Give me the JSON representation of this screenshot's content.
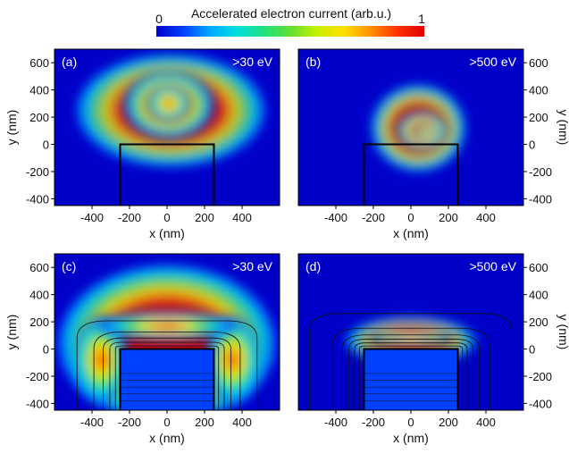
{
  "colorbar": {
    "title": "Accelerated electron current (arb.u.)",
    "min_label": "0",
    "max_label": "1",
    "colors": [
      "#0000c8",
      "#0040ff",
      "#00a8ff",
      "#00e0e0",
      "#20e080",
      "#60e030",
      "#c8f000",
      "#ffe000",
      "#ff9000",
      "#ff3000",
      "#e00000"
    ]
  },
  "chart_data": [
    {
      "type": "heatmap",
      "panel": "(a)",
      "energy_label": ">30 eV",
      "xlabel": "x (nm)",
      "ylabel": "y (nm)",
      "xlim": [
        -600,
        600
      ],
      "ylim": [
        -450,
        700
      ],
      "xticks": [
        -400,
        -200,
        0,
        200,
        400
      ],
      "yticks": [
        -400,
        -200,
        0,
        200,
        400,
        600
      ],
      "xtick_labels": [
        "-400",
        "-200",
        "0",
        "200",
        "400"
      ],
      "ytick_labels": [
        "-400",
        "-200",
        "0",
        "200",
        "400",
        "600"
      ],
      "structure": {
        "x": [
          -250,
          250
        ],
        "y": [
          -450,
          0
        ]
      },
      "field_lines": false
    },
    {
      "type": "heatmap",
      "panel": "(b)",
      "energy_label": ">500 eV",
      "xlabel": "x (nm)",
      "ylabel": "y (nm)",
      "xlim": [
        -600,
        600
      ],
      "ylim": [
        -450,
        700
      ],
      "xticks": [
        -400,
        -200,
        0,
        200,
        400
      ],
      "yticks": [
        -400,
        -200,
        0,
        200,
        400,
        600
      ],
      "xtick_labels": [
        "-400",
        "-200",
        "0",
        "200",
        "400"
      ],
      "ytick_labels": [
        "-400",
        "-200",
        "0",
        "200",
        "400",
        "600"
      ],
      "structure": {
        "x": [
          -250,
          250
        ],
        "y": [
          -450,
          0
        ]
      },
      "field_lines": false
    },
    {
      "type": "heatmap",
      "panel": "(c)",
      "energy_label": ">30 eV",
      "xlabel": "x (nm)",
      "ylabel": "y (nm)",
      "xlim": [
        -600,
        600
      ],
      "ylim": [
        -450,
        700
      ],
      "xticks": [
        -400,
        -200,
        0,
        200,
        400
      ],
      "yticks": [
        -400,
        -200,
        0,
        200,
        400,
        600
      ],
      "xtick_labels": [
        "-400",
        "-200",
        "0",
        "200",
        "400"
      ],
      "ytick_labels": [
        "-400",
        "-200",
        "0",
        "200",
        "400",
        "600"
      ],
      "structure": {
        "x": [
          -250,
          250
        ],
        "y": [
          -450,
          0
        ]
      },
      "field_lines": true
    },
    {
      "type": "heatmap",
      "panel": "(d)",
      "energy_label": ">500 eV",
      "xlabel": "x (nm)",
      "ylabel": "y (nm)",
      "xlim": [
        -600,
        600
      ],
      "ylim": [
        -450,
        700
      ],
      "xticks": [
        -400,
        -200,
        0,
        200,
        400
      ],
      "yticks": [
        -400,
        -200,
        0,
        200,
        400,
        600
      ],
      "xtick_labels": [
        "-400",
        "-200",
        "0",
        "200",
        "400"
      ],
      "ytick_labels": [
        "-400",
        "-200",
        "0",
        "200",
        "400",
        "600"
      ],
      "structure": {
        "x": [
          -250,
          250
        ],
        "y": [
          -450,
          0
        ]
      },
      "field_lines": true
    }
  ]
}
